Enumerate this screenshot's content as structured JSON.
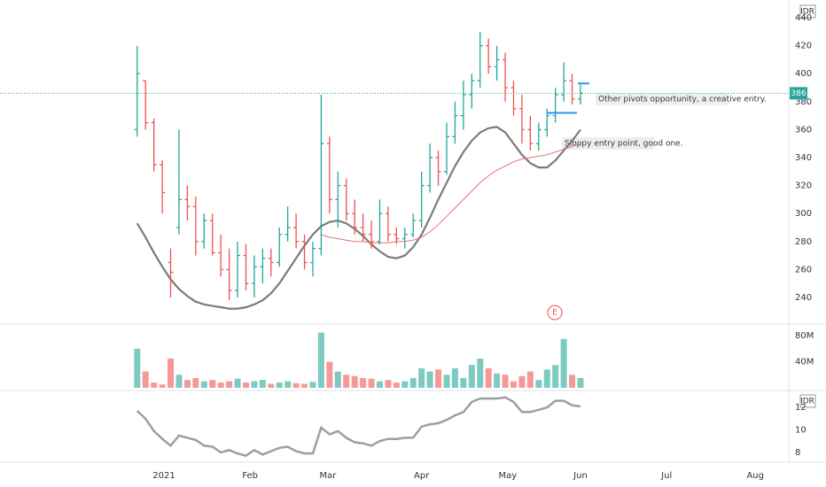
{
  "chart_data": {
    "type": "ohlc",
    "currency_label": "IDR",
    "xlim": [
      -16.4,
      77.9
    ],
    "xticks": [
      {
        "value": 3.2,
        "label": "2021"
      },
      {
        "value": 13.5,
        "label": "Feb"
      },
      {
        "value": 22.8,
        "label": "Mar"
      },
      {
        "value": 34,
        "label": "Apr"
      },
      {
        "value": 44.3,
        "label": "May"
      },
      {
        "value": 53,
        "label": "Jun"
      },
      {
        "value": 63.3,
        "label": "Jul"
      },
      {
        "value": 73.9,
        "label": "Aug"
      }
    ],
    "ylim": [
      221.6,
      452.7
    ],
    "yticks": [
      240,
      260,
      280,
      300,
      320,
      340,
      360,
      380,
      400,
      420,
      440
    ],
    "up_color": "#26a69a",
    "down_color": "#ef5350",
    "open": [
      360,
      395,
      365,
      335,
      265,
      290,
      310,
      305,
      280,
      295,
      272,
      260,
      245,
      270,
      250,
      262,
      268,
      265,
      285,
      290,
      280,
      265,
      275,
      350,
      310,
      320,
      300,
      290,
      285,
      280,
      300,
      285,
      282,
      285,
      295,
      320,
      340,
      330,
      355,
      370,
      385,
      395,
      420,
      405,
      410,
      390,
      375,
      360,
      350,
      360,
      370,
      385,
      395,
      382
    ],
    "high": [
      420,
      395,
      368,
      338,
      275,
      360,
      320,
      312,
      300,
      300,
      285,
      275,
      280,
      278,
      270,
      275,
      275,
      290,
      305,
      300,
      285,
      280,
      385,
      355,
      330,
      325,
      310,
      300,
      295,
      310,
      305,
      290,
      290,
      300,
      330,
      350,
      345,
      365,
      380,
      395,
      400,
      430,
      425,
      420,
      415,
      395,
      385,
      370,
      365,
      375,
      390,
      408,
      400,
      392
    ],
    "low": [
      355,
      360,
      330,
      300,
      240,
      285,
      295,
      270,
      275,
      270,
      255,
      238,
      240,
      245,
      240,
      250,
      255,
      262,
      280,
      275,
      260,
      255,
      270,
      300,
      290,
      295,
      285,
      280,
      275,
      278,
      280,
      278,
      275,
      283,
      290,
      315,
      320,
      328,
      350,
      360,
      375,
      390,
      400,
      395,
      380,
      370,
      350,
      345,
      345,
      355,
      365,
      380,
      378,
      378
    ],
    "close": [
      400,
      365,
      335,
      315,
      258,
      310,
      305,
      280,
      295,
      272,
      260,
      245,
      270,
      250,
      262,
      268,
      265,
      285,
      290,
      280,
      265,
      275,
      350,
      310,
      320,
      300,
      290,
      285,
      280,
      300,
      285,
      282,
      285,
      295,
      320,
      340,
      330,
      355,
      370,
      385,
      395,
      420,
      405,
      410,
      390,
      375,
      360,
      350,
      360,
      370,
      385,
      395,
      382,
      386
    ],
    "last_price": 386,
    "series": [
      {
        "color": "#7b7b7b",
        "values": [
          293,
          283,
          272,
          262,
          253,
          246,
          241,
          237,
          235,
          234,
          233,
          232,
          232,
          233,
          235,
          238,
          243,
          250,
          259,
          268,
          277,
          285,
          291,
          294,
          295,
          293,
          289,
          284,
          278,
          273,
          269,
          268,
          270,
          276,
          285,
          297,
          310,
          322,
          334,
          344,
          352,
          358,
          361,
          362,
          358,
          350,
          342,
          336,
          333,
          333,
          338,
          345,
          352,
          360
        ]
      },
      {
        "color": "#e57373",
        "values": [
          null,
          null,
          null,
          null,
          null,
          null,
          null,
          null,
          null,
          null,
          null,
          null,
          null,
          null,
          null,
          null,
          null,
          null,
          null,
          null,
          null,
          null,
          285,
          283,
          282,
          281,
          280,
          280,
          279,
          279,
          279,
          280,
          280,
          281,
          283,
          287,
          292,
          298,
          304,
          310,
          316,
          322,
          327,
          331,
          334,
          337,
          339,
          340,
          341,
          342,
          344,
          346,
          348,
          350
        ]
      }
    ],
    "pivot_lines": [
      372,
      393
    ],
    "annotations": [
      "Other pivots opportunity, a creative entry.",
      "Sloppy entry point, good one."
    ],
    "earnings_marker": "E",
    "volume": {
      "ylim": [
        -2.8,
        96.6
      ],
      "yticks": [
        {
          "value": 40,
          "label": "40M"
        },
        {
          "value": 80,
          "label": "80M"
        }
      ],
      "values": [
        60,
        25,
        8,
        5,
        45,
        20,
        12,
        15,
        10,
        12,
        8,
        10,
        14,
        8,
        10,
        12,
        6,
        8,
        10,
        7,
        6,
        9,
        85,
        40,
        25,
        20,
        18,
        15,
        14,
        10,
        12,
        8,
        10,
        15,
        30,
        25,
        28,
        20,
        30,
        15,
        35,
        45,
        30,
        22,
        20,
        10,
        18,
        25,
        12,
        28,
        35,
        75,
        20,
        15
      ]
    },
    "indicator": {
      "ylim": [
        7.2,
        13.44
      ],
      "yticks": [
        8,
        10,
        12
      ],
      "color": "#9e9e9e",
      "values": [
        11.7,
        11.0,
        9.9,
        9.2,
        8.6,
        9.5,
        9.3,
        9.1,
        8.6,
        8.5,
        8.0,
        8.2,
        7.9,
        7.7,
        8.2,
        7.8,
        8.1,
        8.4,
        8.5,
        8.1,
        7.9,
        7.9,
        10.2,
        9.6,
        9.9,
        9.3,
        8.9,
        8.8,
        8.6,
        9.0,
        9.2,
        9.2,
        9.3,
        9.3,
        10.3,
        10.5,
        10.6,
        10.9,
        11.3,
        11.6,
        12.5,
        12.8,
        12.8,
        12.8,
        12.9,
        12.5,
        11.6,
        11.6,
        11.8,
        12.0,
        12.6,
        12.6,
        12.2,
        12.1
      ]
    }
  }
}
